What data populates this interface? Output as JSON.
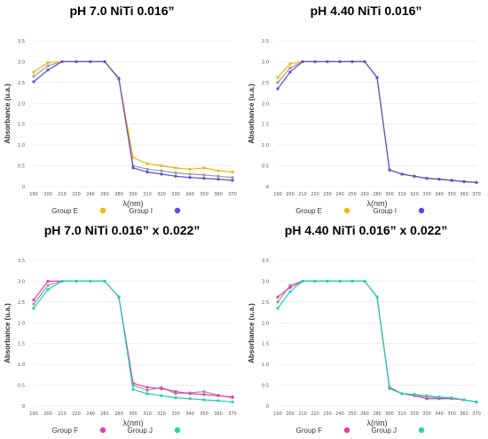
{
  "chart_data": [
    {
      "type": "line",
      "title": "pH 7.0 NiTi 0.016”",
      "xlabel": "λ(nm)",
      "ylabel": "Absorbance (u.a.)",
      "ylim": [
        0,
        3.5
      ],
      "yticks": [
        "0",
        "0.5",
        "1.0",
        "1.5",
        "2.0",
        "2.5",
        "3.0",
        "3.5"
      ],
      "x": [
        190,
        200,
        210,
        220,
        240,
        260,
        280,
        300,
        310,
        320,
        330,
        340,
        350,
        360,
        370
      ],
      "series": [
        {
          "name": "Group E",
          "color": "#F2B50F",
          "values": [
            2.75,
            2.98,
            3.0,
            3.0,
            3.0,
            3.0,
            2.58,
            0.7,
            0.55,
            0.5,
            0.45,
            0.42,
            0.45,
            0.38,
            0.35
          ]
        },
        {
          "name": "Group I",
          "color": "#5C4AD6",
          "values": [
            2.52,
            2.8,
            3.0,
            3.0,
            3.0,
            3.0,
            2.6,
            0.45,
            0.35,
            0.3,
            0.25,
            0.22,
            0.2,
            0.18,
            0.15
          ]
        },
        {
          "name": "",
          "color": "#9A9A9A",
          "values": [
            2.65,
            2.9,
            3.0,
            3.0,
            3.0,
            3.0,
            2.58,
            0.5,
            0.42,
            0.38,
            0.33,
            0.3,
            0.28,
            0.25,
            0.22
          ]
        }
      ]
    },
    {
      "type": "line",
      "title": "pH 4.40 NiTi 0.016”",
      "xlabel": "λ(nm)",
      "ylabel": "Absorbance (u.a.)",
      "ylim": [
        0,
        3.5
      ],
      "yticks": [
        "0",
        "0.5",
        "1.0",
        "1.5",
        "2.0",
        "2.5",
        "3.0",
        "3.5"
      ],
      "x": [
        190,
        200,
        210,
        220,
        230,
        240,
        250,
        260,
        280,
        300,
        310,
        320,
        330,
        340,
        350,
        360,
        370
      ],
      "series": [
        {
          "name": "Group E",
          "color": "#F2B50F",
          "values": [
            2.62,
            2.95,
            3.0,
            3.0,
            3.0,
            3.0,
            3.0,
            3.0,
            2.62,
            0.4,
            0.3,
            0.25,
            0.2,
            0.18,
            0.15,
            0.12,
            0.1
          ]
        },
        {
          "name": "Group I",
          "color": "#5C4AD6",
          "values": [
            2.35,
            2.75,
            3.0,
            3.0,
            3.0,
            3.0,
            3.0,
            3.0,
            2.62,
            0.4,
            0.3,
            0.25,
            0.2,
            0.18,
            0.15,
            0.12,
            0.1
          ]
        },
        {
          "name": "",
          "color": "#9A9A9A",
          "values": [
            2.5,
            2.85,
            3.0,
            3.0,
            3.0,
            3.0,
            3.0,
            3.0,
            2.62,
            0.4,
            0.3,
            0.25,
            0.2,
            0.18,
            0.15,
            0.12,
            0.1
          ]
        }
      ]
    },
    {
      "type": "line",
      "title": "pH 7.0 NiTi 0.016” x 0.022”",
      "xlabel": "λ(nm)",
      "ylabel": "Absorbance (u.a.)",
      "ylim": [
        0,
        3.5
      ],
      "yticks": [
        "0",
        "0.5",
        "1.0",
        "1.5",
        "2.0",
        "2.5",
        "3.0",
        "3.5"
      ],
      "x": [
        190,
        200,
        210,
        220,
        240,
        260,
        280,
        300,
        310,
        320,
        330,
        340,
        350,
        360,
        370
      ],
      "series": [
        {
          "name": "Group F",
          "color": "#E83BB0",
          "values": [
            2.55,
            3.0,
            3.0,
            3.0,
            3.0,
            3.0,
            2.62,
            0.55,
            0.45,
            0.42,
            0.35,
            0.3,
            0.28,
            0.25,
            0.22
          ]
        },
        {
          "name": "Group J",
          "color": "#20D3B0",
          "values": [
            2.35,
            2.8,
            3.0,
            3.0,
            3.0,
            3.0,
            2.62,
            0.4,
            0.3,
            0.25,
            0.2,
            0.18,
            0.15,
            0.13,
            0.1
          ]
        },
        {
          "name": "",
          "color": "#9A9A9A",
          "values": [
            2.45,
            2.9,
            3.0,
            3.0,
            3.0,
            3.0,
            2.62,
            0.5,
            0.38,
            0.45,
            0.3,
            0.32,
            0.35,
            0.26,
            0.2
          ]
        }
      ]
    },
    {
      "type": "line",
      "title": "pH 4.40 NiTi 0.016” x 0.022”",
      "xlabel": "λ(nm)",
      "ylabel": "Absorbance (u.a.)",
      "ylim": [
        0,
        3.5
      ],
      "yticks": [
        "0",
        "0.5",
        "1.0",
        "1.5",
        "2.0",
        "2.5",
        "3.0",
        "3.5"
      ],
      "x": [
        190,
        200,
        210,
        220,
        230,
        240,
        250,
        260,
        280,
        300,
        310,
        320,
        330,
        340,
        350,
        360,
        370
      ],
      "series": [
        {
          "name": "Group F",
          "color": "#E83BB0",
          "values": [
            2.62,
            2.85,
            3.0,
            3.0,
            3.0,
            3.0,
            3.0,
            3.0,
            2.62,
            0.45,
            0.3,
            0.25,
            0.18,
            0.18,
            0.18,
            0.15,
            0.1
          ]
        },
        {
          "name": "Group J",
          "color": "#20D3B0",
          "values": [
            2.35,
            2.75,
            3.0,
            3.0,
            3.0,
            3.0,
            3.0,
            3.0,
            2.62,
            0.42,
            0.3,
            0.28,
            0.25,
            0.22,
            0.2,
            0.15,
            0.1
          ]
        },
        {
          "name": "",
          "color": "#9A9A9A",
          "values": [
            2.5,
            2.9,
            3.0,
            3.0,
            3.0,
            3.0,
            3.0,
            3.0,
            2.62,
            0.43,
            0.3,
            0.27,
            0.22,
            0.2,
            0.19,
            0.15,
            0.1
          ]
        }
      ]
    }
  ]
}
